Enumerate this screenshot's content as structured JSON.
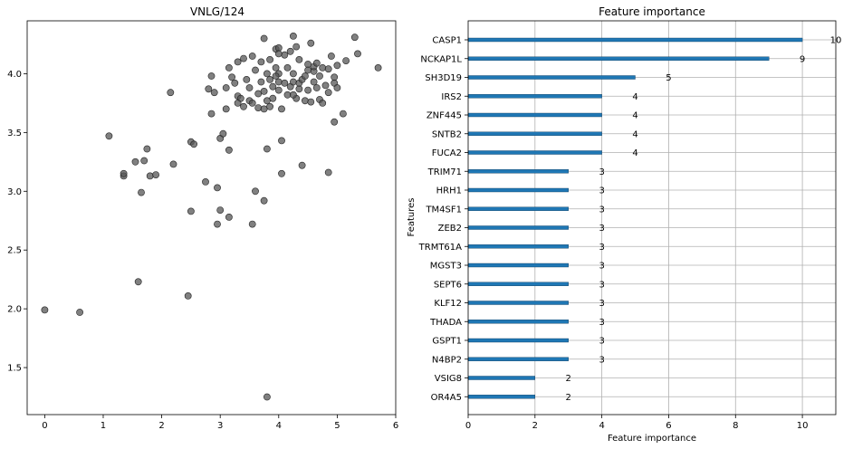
{
  "chart_data": [
    {
      "type": "scatter",
      "title": "VNLG/124",
      "xlabel": "",
      "ylabel": "",
      "xlim": [
        -0.3,
        6.0
      ],
      "ylim": [
        1.1,
        4.45
      ],
      "xticks": [
        0,
        1,
        2,
        3,
        4,
        5,
        6
      ],
      "yticks": [
        1.5,
        2.0,
        2.5,
        3.0,
        3.5,
        4.0
      ],
      "grid": false,
      "point_color": "#555555",
      "points": [
        [
          0.0,
          1.99
        ],
        [
          0.6,
          1.97
        ],
        [
          1.1,
          3.47
        ],
        [
          1.35,
          3.13
        ],
        [
          1.35,
          3.15
        ],
        [
          1.55,
          3.25
        ],
        [
          1.6,
          2.23
        ],
        [
          1.65,
          2.99
        ],
        [
          1.7,
          3.26
        ],
        [
          1.75,
          3.36
        ],
        [
          1.8,
          3.13
        ],
        [
          1.9,
          3.14
        ],
        [
          2.15,
          3.84
        ],
        [
          2.2,
          3.23
        ],
        [
          2.45,
          2.11
        ],
        [
          2.5,
          3.42
        ],
        [
          2.5,
          2.83
        ],
        [
          2.55,
          3.4
        ],
        [
          2.75,
          3.08
        ],
        [
          2.8,
          3.87
        ],
        [
          2.85,
          3.66
        ],
        [
          2.85,
          3.98
        ],
        [
          2.9,
          3.84
        ],
        [
          2.95,
          3.03
        ],
        [
          2.95,
          2.72
        ],
        [
          3.0,
          2.84
        ],
        [
          3.0,
          3.45
        ],
        [
          3.05,
          3.49
        ],
        [
          3.1,
          3.7
        ],
        [
          3.1,
          3.88
        ],
        [
          3.15,
          2.78
        ],
        [
          3.15,
          3.35
        ],
        [
          3.15,
          4.05
        ],
        [
          3.2,
          3.97
        ],
        [
          3.25,
          3.92
        ],
        [
          3.3,
          4.1
        ],
        [
          3.3,
          3.81
        ],
        [
          3.35,
          3.79
        ],
        [
          3.4,
          4.13
        ],
        [
          3.4,
          3.72
        ],
        [
          3.45,
          3.95
        ],
        [
          3.5,
          3.88
        ],
        [
          3.5,
          3.77
        ],
        [
          3.55,
          4.15
        ],
        [
          3.55,
          2.72
        ],
        [
          3.55,
          3.75
        ],
        [
          3.6,
          4.03
        ],
        [
          3.6,
          3.0
        ],
        [
          3.65,
          3.83
        ],
        [
          3.65,
          3.71
        ],
        [
          3.7,
          4.1
        ],
        [
          3.7,
          3.93
        ],
        [
          3.75,
          3.85
        ],
        [
          3.75,
          3.7
        ],
        [
          3.75,
          4.3
        ],
        [
          3.75,
          2.92
        ],
        [
          3.8,
          3.36
        ],
        [
          3.8,
          4.0
        ],
        [
          3.8,
          3.77
        ],
        [
          3.85,
          3.95
        ],
        [
          3.85,
          3.72
        ],
        [
          3.85,
          4.12
        ],
        [
          3.9,
          3.89
        ],
        [
          3.9,
          3.79
        ],
        [
          3.95,
          4.05
        ],
        [
          3.95,
          4.21
        ],
        [
          4.0,
          3.93
        ],
        [
          4.0,
          4.0
        ],
        [
          4.0,
          3.86
        ],
        [
          4.0,
          4.22
        ],
        [
          4.05,
          3.7
        ],
        [
          4.05,
          3.15
        ],
        [
          4.05,
          3.43
        ],
        [
          4.1,
          4.16
        ],
        [
          4.1,
          3.92
        ],
        [
          4.15,
          3.82
        ],
        [
          4.15,
          4.05
        ],
        [
          4.2,
          4.19
        ],
        [
          4.2,
          3.89
        ],
        [
          4.25,
          4.32
        ],
        [
          4.25,
          4.0
        ],
        [
          4.25,
          3.93
        ],
        [
          4.3,
          3.79
        ],
        [
          4.3,
          4.23
        ],
        [
          4.35,
          4.12
        ],
        [
          4.35,
          3.87
        ],
        [
          4.35,
          3.92
        ],
        [
          4.4,
          3.22
        ],
        [
          4.4,
          3.95
        ],
        [
          4.45,
          3.98
        ],
        [
          4.45,
          3.77
        ],
        [
          4.5,
          4.08
        ],
        [
          4.5,
          3.86
        ],
        [
          4.55,
          4.26
        ],
        [
          4.55,
          3.76
        ],
        [
          4.6,
          4.02
        ],
        [
          4.6,
          3.93
        ],
        [
          4.6,
          4.06
        ],
        [
          4.65,
          3.88
        ],
        [
          4.65,
          4.09
        ],
        [
          4.7,
          3.78
        ],
        [
          4.7,
          3.98
        ],
        [
          4.75,
          4.05
        ],
        [
          4.75,
          3.75
        ],
        [
          4.8,
          3.9
        ],
        [
          4.85,
          3.16
        ],
        [
          4.85,
          4.04
        ],
        [
          4.85,
          3.84
        ],
        [
          4.9,
          4.15
        ],
        [
          4.95,
          3.97
        ],
        [
          4.95,
          3.59
        ],
        [
          4.95,
          3.92
        ],
        [
          5.0,
          4.07
        ],
        [
          5.0,
          3.88
        ],
        [
          5.1,
          3.66
        ],
        [
          5.15,
          4.11
        ],
        [
          5.3,
          4.31
        ],
        [
          5.35,
          4.17
        ],
        [
          5.7,
          4.05
        ],
        [
          3.8,
          1.25
        ],
        [
          4.0,
          4.17
        ],
        [
          3.95,
          3.98
        ],
        [
          4.5,
          4.03
        ],
        [
          4.25,
          3.82
        ],
        [
          3.3,
          3.75
        ]
      ]
    },
    {
      "type": "bar",
      "orientation": "horizontal",
      "title": "Feature importance",
      "xlabel": "Feature importance",
      "ylabel": "Features",
      "xlim": [
        0,
        11
      ],
      "xticks": [
        0,
        2,
        4,
        6,
        8,
        10
      ],
      "grid": true,
      "bar_color": "#1f77b4",
      "categories": [
        "CASP1",
        "NCKAP1L",
        "SH3D19",
        "IRS2",
        "ZNF445",
        "SNTB2",
        "FUCA2",
        "TRIM71",
        "HRH1",
        "TM4SF1",
        "ZEB2",
        "TRMT61A",
        "MGST3",
        "SEPT6",
        "KLF12",
        "THADA",
        "GSPT1",
        "N4BP2",
        "VSIG8",
        "OR4A5"
      ],
      "values": [
        10,
        9,
        5,
        4,
        4,
        4,
        4,
        3,
        3,
        3,
        3,
        3,
        3,
        3,
        3,
        3,
        3,
        3,
        2,
        2
      ]
    }
  ]
}
